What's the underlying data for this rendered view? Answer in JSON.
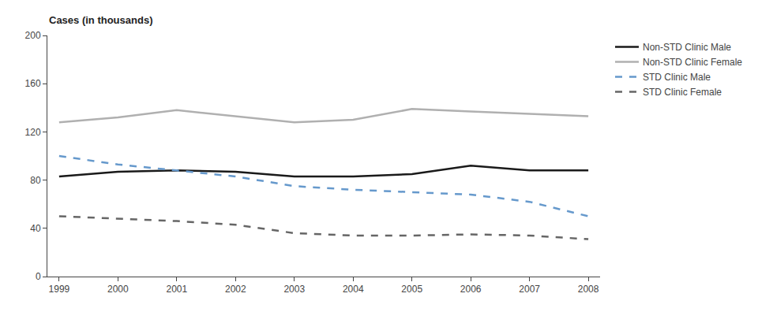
{
  "chart_data": {
    "type": "line",
    "ylabel": "Cases (in thousands)",
    "x": [
      1999,
      2000,
      2001,
      2002,
      2003,
      2004,
      2005,
      2006,
      2007,
      2008
    ],
    "series": [
      {
        "name": "Non-STD Clinic Male",
        "color": "#1a1a1a",
        "line_style": "solid",
        "values": [
          83,
          87,
          88,
          87,
          83,
          83,
          85,
          92,
          88,
          88
        ]
      },
      {
        "name": "Non-STD Clinic Female",
        "color": "#b0b0b0",
        "line_style": "solid",
        "values": [
          128,
          132,
          138,
          133,
          128,
          130,
          139,
          137,
          135,
          133
        ]
      },
      {
        "name": "STD Clinic Male",
        "color": "#6699cc",
        "line_style": "dashed",
        "values": [
          100,
          93,
          88,
          83,
          75,
          72,
          70,
          68,
          62,
          50
        ]
      },
      {
        "name": "STD Clinic Female",
        "color": "#666666",
        "line_style": "dashed",
        "values": [
          50,
          48,
          46,
          43,
          36,
          34,
          34,
          35,
          34,
          31
        ]
      }
    ],
    "xlim": [
      1998.8,
      2008.2
    ],
    "xticks": [
      1999,
      2000,
      2001,
      2002,
      2003,
      2004,
      2005,
      2006,
      2007,
      2008
    ],
    "ylim": [
      0,
      200
    ],
    "yticks": [
      0,
      40,
      80,
      120,
      160,
      200
    ],
    "grid": false,
    "legend": "upper right"
  }
}
